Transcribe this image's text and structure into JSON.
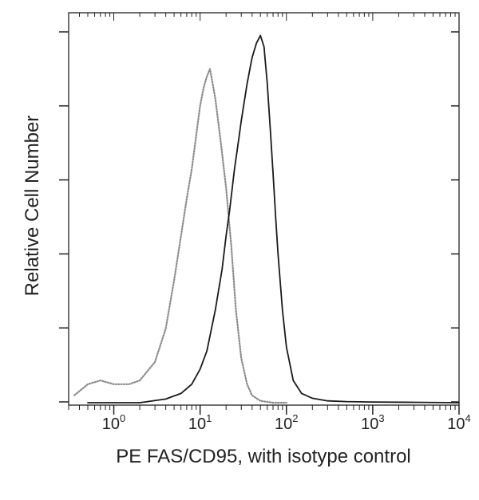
{
  "chart_data": {
    "type": "line",
    "xlabel": "PE FAS/CD95, with isotype control",
    "ylabel": "Relative Cell Number",
    "xscale": "log",
    "xlim": [
      0.3,
      10000
    ],
    "ylim": [
      0,
      1
    ],
    "x_ticks": [
      {
        "base": "10",
        "exp": "0",
        "value": 1
      },
      {
        "base": "10",
        "exp": "1",
        "value": 10
      },
      {
        "base": "10",
        "exp": "2",
        "value": 100
      },
      {
        "base": "10",
        "exp": "3",
        "value": 1000
      },
      {
        "base": "10",
        "exp": "4",
        "value": 10000
      }
    ],
    "grid": false,
    "legend": "none",
    "series": [
      {
        "style": "dotted",
        "color": "#8a8a8a",
        "x": [
          0.35,
          0.5,
          0.7,
          1.0,
          1.5,
          2.0,
          3.0,
          4.0,
          5.0,
          6.0,
          7.0,
          8.0,
          9.0,
          10.0,
          11.0,
          12.0,
          13.0,
          14.0,
          15.0,
          17.0,
          20.0,
          23.0,
          26.0,
          30.0,
          35.0,
          40.0,
          50.0,
          70.0,
          100.0
        ],
        "y": [
          0.02,
          0.05,
          0.06,
          0.05,
          0.05,
          0.06,
          0.11,
          0.2,
          0.33,
          0.45,
          0.55,
          0.63,
          0.72,
          0.8,
          0.85,
          0.88,
          0.9,
          0.86,
          0.82,
          0.72,
          0.58,
          0.42,
          0.25,
          0.12,
          0.05,
          0.02,
          0.005,
          0.0,
          0.0
        ]
      },
      {
        "style": "solid",
        "color": "#1a1a1a",
        "x": [
          0.5,
          2.0,
          4.0,
          6.0,
          8.0,
          10.0,
          12.0,
          15.0,
          18.0,
          20.0,
          22.0,
          25.0,
          28.0,
          30.0,
          35.0,
          40.0,
          45.0,
          50.0,
          55.0,
          60.0,
          65.0,
          70.0,
          75.0,
          80.0,
          90.0,
          100.0,
          120.0,
          150.0,
          200.0,
          300.0,
          500.0,
          1000.0,
          3000.0,
          10000.0
        ],
        "y": [
          0.0,
          0.0,
          0.01,
          0.025,
          0.05,
          0.09,
          0.14,
          0.25,
          0.36,
          0.45,
          0.52,
          0.63,
          0.71,
          0.76,
          0.86,
          0.93,
          0.97,
          0.99,
          0.96,
          0.86,
          0.74,
          0.62,
          0.5,
          0.4,
          0.25,
          0.15,
          0.06,
          0.025,
          0.012,
          0.005,
          0.003,
          0.002,
          0.001,
          0.0
        ]
      }
    ]
  }
}
